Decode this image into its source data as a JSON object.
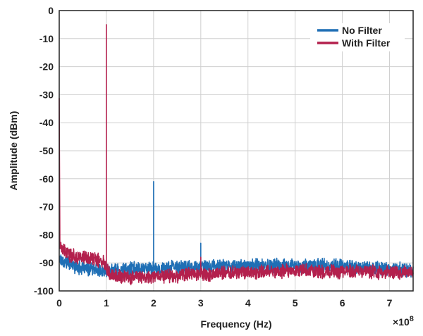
{
  "chart_data": {
    "type": "line",
    "title": "",
    "xlabel": "Frequency (Hz)",
    "ylabel": "Amplitude (dBm)",
    "x_multiplier_label": "×10",
    "x_multiplier_exponent": "8",
    "xlim": [
      0,
      750000000
    ],
    "ylim": [
      -100,
      0
    ],
    "x_ticks": [
      {
        "value": 0,
        "label": "0"
      },
      {
        "value": 100000000,
        "label": "1"
      },
      {
        "value": 200000000,
        "label": "2"
      },
      {
        "value": 300000000,
        "label": "3"
      },
      {
        "value": 400000000,
        "label": "4"
      },
      {
        "value": 500000000,
        "label": "5"
      },
      {
        "value": 600000000,
        "label": "6"
      },
      {
        "value": 700000000,
        "label": "7"
      }
    ],
    "y_ticks": [
      {
        "value": 0,
        "label": "0"
      },
      {
        "value": -10,
        "label": "-10"
      },
      {
        "value": -20,
        "label": "-20"
      },
      {
        "value": -30,
        "label": "-30"
      },
      {
        "value": -40,
        "label": "-40"
      },
      {
        "value": -50,
        "label": "-50"
      },
      {
        "value": -60,
        "label": "-60"
      },
      {
        "value": -70,
        "label": "-70"
      },
      {
        "value": -80,
        "label": "-80"
      },
      {
        "value": -90,
        "label": "-90"
      },
      {
        "value": -100,
        "label": "-100"
      }
    ],
    "grid": true,
    "legend_position": "top-right",
    "series": [
      {
        "name": "No Filter",
        "color": "#1f6fb5",
        "points": [
          [
            0,
            -88
          ],
          [
            5000000,
            -89
          ],
          [
            10000000,
            -89.5
          ],
          [
            20000000,
            -90
          ],
          [
            30000000,
            -91
          ],
          [
            40000000,
            -91.5
          ],
          [
            50000000,
            -92
          ],
          [
            60000000,
            -92
          ],
          [
            70000000,
            -92.5
          ],
          [
            80000000,
            -92.5
          ],
          [
            90000000,
            -93
          ],
          [
            95000000,
            -93
          ],
          [
            100000000,
            -93
          ],
          [
            110000000,
            -92.5
          ],
          [
            120000000,
            -92.5
          ],
          [
            130000000,
            -92.5
          ],
          [
            140000000,
            -92.5
          ],
          [
            150000000,
            -92
          ],
          [
            160000000,
            -92
          ],
          [
            170000000,
            -92
          ],
          [
            180000000,
            -92
          ],
          [
            190000000,
            -92
          ],
          [
            198000000,
            -92
          ],
          [
            200000000,
            -61
          ],
          [
            202000000,
            -92
          ],
          [
            210000000,
            -92
          ],
          [
            220000000,
            -92
          ],
          [
            230000000,
            -92
          ],
          [
            240000000,
            -91.5
          ],
          [
            250000000,
            -91.5
          ],
          [
            260000000,
            -91.5
          ],
          [
            270000000,
            -91.5
          ],
          [
            280000000,
            -91.5
          ],
          [
            298000000,
            -91.5
          ],
          [
            300000000,
            -83
          ],
          [
            302000000,
            -91.5
          ],
          [
            310000000,
            -91.5
          ],
          [
            320000000,
            -91.5
          ],
          [
            330000000,
            -91
          ],
          [
            340000000,
            -91
          ],
          [
            350000000,
            -91
          ],
          [
            360000000,
            -91
          ],
          [
            370000000,
            -91
          ],
          [
            380000000,
            -91
          ],
          [
            390000000,
            -91
          ],
          [
            400000000,
            -91
          ],
          [
            410000000,
            -91
          ],
          [
            420000000,
            -91
          ],
          [
            430000000,
            -91
          ],
          [
            440000000,
            -91
          ],
          [
            450000000,
            -91
          ],
          [
            460000000,
            -91
          ],
          [
            470000000,
            -91
          ],
          [
            480000000,
            -91
          ],
          [
            490000000,
            -91
          ],
          [
            500000000,
            -91
          ],
          [
            510000000,
            -91
          ],
          [
            520000000,
            -91
          ],
          [
            530000000,
            -91
          ],
          [
            540000000,
            -91
          ],
          [
            550000000,
            -90.5
          ],
          [
            560000000,
            -91
          ],
          [
            570000000,
            -91
          ],
          [
            580000000,
            -91
          ],
          [
            590000000,
            -91
          ],
          [
            600000000,
            -91
          ],
          [
            610000000,
            -91
          ],
          [
            620000000,
            -91
          ],
          [
            630000000,
            -91.5
          ],
          [
            640000000,
            -91.5
          ],
          [
            650000000,
            -91.5
          ],
          [
            660000000,
            -91.5
          ],
          [
            670000000,
            -92
          ],
          [
            680000000,
            -92
          ],
          [
            690000000,
            -92
          ],
          [
            700000000,
            -92
          ],
          [
            710000000,
            -92.5
          ],
          [
            720000000,
            -92.5
          ],
          [
            730000000,
            -92.5
          ],
          [
            740000000,
            -93
          ],
          [
            750000000,
            -93
          ]
        ]
      },
      {
        "name": "With Filter",
        "color": "#b3204d",
        "points": [
          [
            0,
            -31
          ],
          [
            1500000,
            -84
          ],
          [
            5000000,
            -85
          ],
          [
            10000000,
            -86
          ],
          [
            20000000,
            -87
          ],
          [
            30000000,
            -87.5
          ],
          [
            40000000,
            -88
          ],
          [
            50000000,
            -88
          ],
          [
            60000000,
            -88.5
          ],
          [
            70000000,
            -88.5
          ],
          [
            80000000,
            -89
          ],
          [
            90000000,
            -89.5
          ],
          [
            98000000,
            -90
          ],
          [
            100000000,
            -5
          ],
          [
            102000000,
            -92
          ],
          [
            110000000,
            -94
          ],
          [
            120000000,
            -94.5
          ],
          [
            130000000,
            -95
          ],
          [
            140000000,
            -95
          ],
          [
            150000000,
            -95
          ],
          [
            160000000,
            -95
          ],
          [
            170000000,
            -95
          ],
          [
            180000000,
            -95
          ],
          [
            190000000,
            -95
          ],
          [
            200000000,
            -94.5
          ],
          [
            210000000,
            -94.5
          ],
          [
            220000000,
            -94.5
          ],
          [
            230000000,
            -94.5
          ],
          [
            240000000,
            -94.5
          ],
          [
            250000000,
            -94.5
          ],
          [
            260000000,
            -94
          ],
          [
            270000000,
            -94
          ],
          [
            280000000,
            -94
          ],
          [
            290000000,
            -94
          ],
          [
            298000000,
            -94
          ],
          [
            300000000,
            -88
          ],
          [
            302000000,
            -94
          ],
          [
            310000000,
            -94
          ],
          [
            320000000,
            -94
          ],
          [
            330000000,
            -94
          ],
          [
            340000000,
            -93.5
          ],
          [
            350000000,
            -93.5
          ],
          [
            360000000,
            -93.5
          ],
          [
            370000000,
            -93.5
          ],
          [
            380000000,
            -93.5
          ],
          [
            390000000,
            -93.5
          ],
          [
            400000000,
            -93.5
          ],
          [
            410000000,
            -93.5
          ],
          [
            420000000,
            -93.5
          ],
          [
            430000000,
            -93
          ],
          [
            440000000,
            -93
          ],
          [
            450000000,
            -93
          ],
          [
            460000000,
            -93
          ],
          [
            470000000,
            -93
          ],
          [
            480000000,
            -93
          ],
          [
            490000000,
            -93
          ],
          [
            500000000,
            -93
          ],
          [
            510000000,
            -93
          ],
          [
            520000000,
            -93
          ],
          [
            530000000,
            -93
          ],
          [
            540000000,
            -93
          ],
          [
            550000000,
            -93
          ],
          [
            560000000,
            -93
          ],
          [
            570000000,
            -93
          ],
          [
            580000000,
            -93
          ],
          [
            590000000,
            -93
          ],
          [
            600000000,
            -93
          ],
          [
            610000000,
            -93
          ],
          [
            620000000,
            -93
          ],
          [
            630000000,
            -93
          ],
          [
            640000000,
            -93
          ],
          [
            650000000,
            -93
          ],
          [
            660000000,
            -93
          ],
          [
            670000000,
            -93.5
          ],
          [
            680000000,
            -93.5
          ],
          [
            690000000,
            -93.5
          ],
          [
            700000000,
            -93.5
          ],
          [
            710000000,
            -93.5
          ],
          [
            720000000,
            -93.5
          ],
          [
            730000000,
            -93.5
          ],
          [
            740000000,
            -93.5
          ],
          [
            750000000,
            -93.5
          ]
        ]
      }
    ]
  }
}
